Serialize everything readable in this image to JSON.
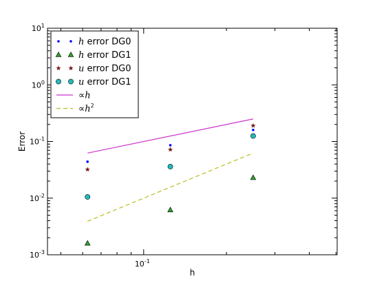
{
  "chart_data": {
    "type": "scatter",
    "title": "",
    "xlabel": "h",
    "ylabel": "Error",
    "xscale": "log",
    "yscale": "log",
    "xlim": [
      0.0447,
      0.505
    ],
    "ylim": [
      0.001,
      10
    ],
    "grid": false,
    "legend_position": "top-left",
    "x_ticks": [
      {
        "value": 0.1,
        "base": "10",
        "exp": "-1"
      }
    ],
    "y_ticks": [
      {
        "value": 0.001,
        "base": "10",
        "exp": "-3"
      },
      {
        "value": 0.01,
        "base": "10",
        "exp": "-2"
      },
      {
        "value": 0.1,
        "base": "10",
        "exp": "-1"
      },
      {
        "value": 1,
        "base": "10",
        "exp": "0"
      },
      {
        "value": 10,
        "base": "10",
        "exp": "1"
      }
    ],
    "series": [
      {
        "name_math": "h",
        "name_text": " error DG0",
        "kind": "marker",
        "marker": "dot",
        "color": "#0000ff",
        "x": [
          0.0625,
          0.125,
          0.25
        ],
        "y": [
          0.044,
          0.086,
          0.16
        ]
      },
      {
        "name_math": "h",
        "name_text": " error DG1",
        "kind": "marker",
        "marker": "triangle",
        "color": "#2ca02c",
        "x": [
          0.0625,
          0.125,
          0.25
        ],
        "y": [
          0.0016,
          0.0062,
          0.023
        ]
      },
      {
        "name_math": "u",
        "name_text": " error DG0",
        "kind": "marker",
        "marker": "star",
        "color": "#7a1a1a",
        "x": [
          0.0625,
          0.125,
          0.25
        ],
        "y": [
          0.032,
          0.072,
          0.19
        ]
      },
      {
        "name_math": "u",
        "name_text": " error DG1",
        "kind": "marker",
        "marker": "circle",
        "color": "#22bbbb",
        "x": [
          0.0625,
          0.125,
          0.25
        ],
        "y": [
          0.0105,
          0.036,
          0.125
        ]
      },
      {
        "name_prefix": "∝",
        "name_math": "h",
        "name_sup": "",
        "kind": "line",
        "dash": "",
        "color": "#cc33cc",
        "x": [
          0.0625,
          0.25
        ],
        "y": [
          0.0625,
          0.25
        ]
      },
      {
        "name_prefix": "∝",
        "name_math": "h",
        "name_sup": "2",
        "kind": "line",
        "dash": "6,4",
        "color": "#bbbb22",
        "x": [
          0.0625,
          0.25
        ],
        "y": [
          0.0039,
          0.0625
        ]
      }
    ]
  }
}
